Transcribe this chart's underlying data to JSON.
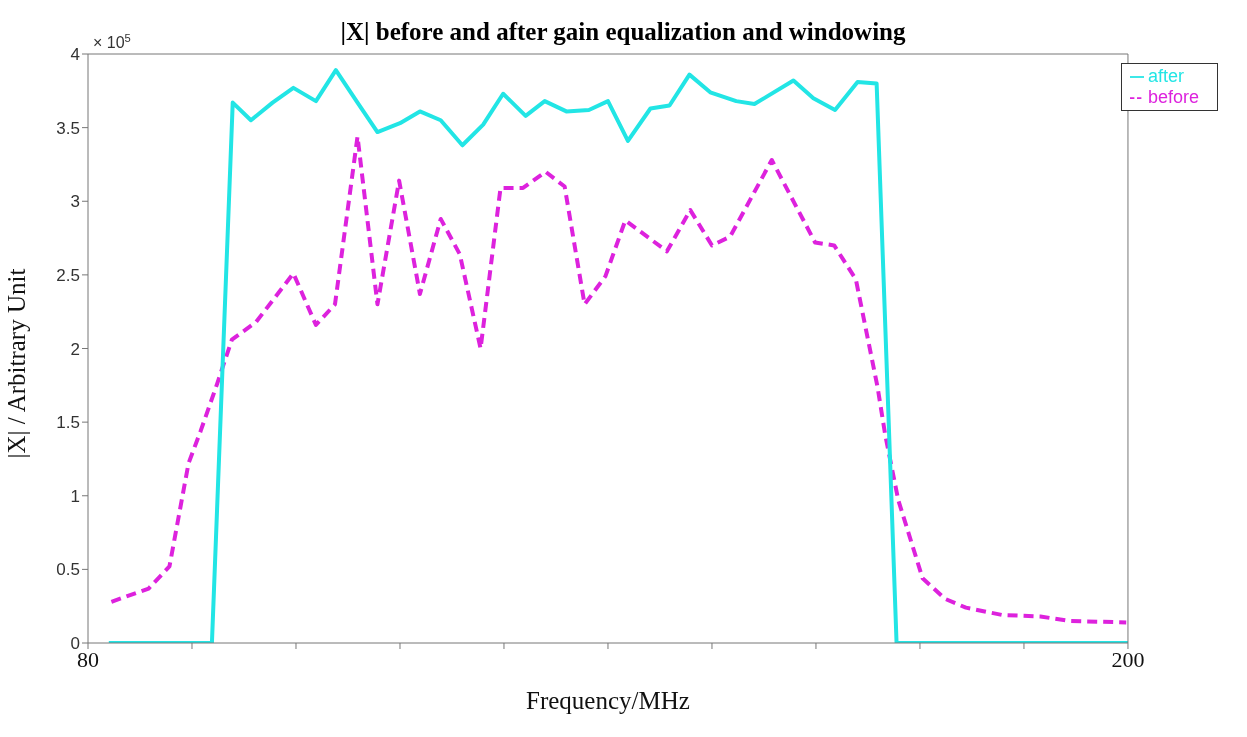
{
  "chart_data": {
    "type": "line",
    "title": "|X| before and after gain equalization and windowing",
    "xlabel": "Frequency/MHz",
    "ylabel": "|X| / Arbitrary Unit",
    "annotations": [
      "× 10$^{5}$"
    ],
    "xlim": [
      80,
      200
    ],
    "xticks": [
      80,
      {
        "value": 92,
        "label": null
      },
      {
        "value": 104,
        "label": null
      },
      {
        "value": 116,
        "label": null
      },
      {
        "value": 128,
        "label": null
      },
      {
        "value": 140,
        "label": null
      },
      {
        "value": 152,
        "label": null
      },
      {
        "value": 164,
        "label": null
      },
      {
        "value": 176,
        "label": null
      },
      {
        "value": 188,
        "label": null
      },
      200
    ],
    "ylim": [
      0,
      4
    ],
    "yticks": [
      0,
      0.5,
      1,
      1.5,
      2,
      2.5,
      3,
      3.5,
      4
    ],
    "grid": false,
    "legend": "top right",
    "marker": "none",
    "series": [
      {
        "name": "before",
        "color": "#dd22dd",
        "line_style": "dashed",
        "x": [
          82.7,
          87.0,
          89.4,
          91.6,
          93.0,
          94.9,
          96.6,
          99.4,
          103.7,
          106.3,
          108.5,
          111.1,
          113.4,
          115.9,
          118.3,
          120.7,
          122.9,
          125.3,
          127.6,
          130.2,
          132.8,
          135.0,
          137.3,
          139.7,
          142.0,
          146.8,
          149.5,
          152.0,
          154.1,
          158.9,
          163.9,
          166.1,
          168.6,
          171.1,
          172.0,
          173.5,
          176.3,
          178.9,
          181.3,
          185.5,
          189.9,
          193.2,
          199.8
        ],
        "values": [
          0.28,
          0.37,
          0.52,
          1.22,
          1.44,
          1.76,
          2.06,
          2.18,
          2.51,
          2.16,
          2.3,
          3.44,
          2.3,
          3.14,
          2.37,
          2.88,
          2.64,
          2.0,
          3.09,
          3.09,
          3.2,
          3.1,
          2.3,
          2.49,
          2.87,
          2.66,
          2.94,
          2.7,
          2.76,
          3.28,
          2.72,
          2.7,
          2.47,
          1.74,
          1.41,
          0.97,
          0.44,
          0.3,
          0.24,
          0.19,
          0.18,
          0.15,
          0.14
        ]
      },
      {
        "name": "after",
        "color": "#22e5e5",
        "line_style": "solid",
        "x": [
          82.4,
          94.3,
          96.7,
          98.8,
          101.3,
          103.7,
          106.3,
          108.6,
          111.1,
          113.4,
          116.0,
          118.3,
          120.7,
          123.2,
          125.6,
          127.9,
          130.5,
          132.7,
          135.2,
          137.8,
          140.0,
          142.3,
          144.9,
          147.1,
          149.4,
          151.8,
          154.8,
          156.9,
          161.4,
          163.7,
          166.2,
          168.8,
          171.0,
          173.3,
          200
        ],
        "values": [
          0,
          0,
          3.67,
          3.55,
          3.67,
          3.77,
          3.68,
          3.89,
          3.67,
          3.47,
          3.53,
          3.61,
          3.55,
          3.38,
          3.52,
          3.73,
          3.58,
          3.68,
          3.61,
          3.62,
          3.68,
          3.41,
          3.63,
          3.65,
          3.86,
          3.74,
          3.68,
          3.66,
          3.82,
          3.7,
          3.62,
          3.81,
          3.8,
          0,
          0
        ]
      }
    ]
  }
}
